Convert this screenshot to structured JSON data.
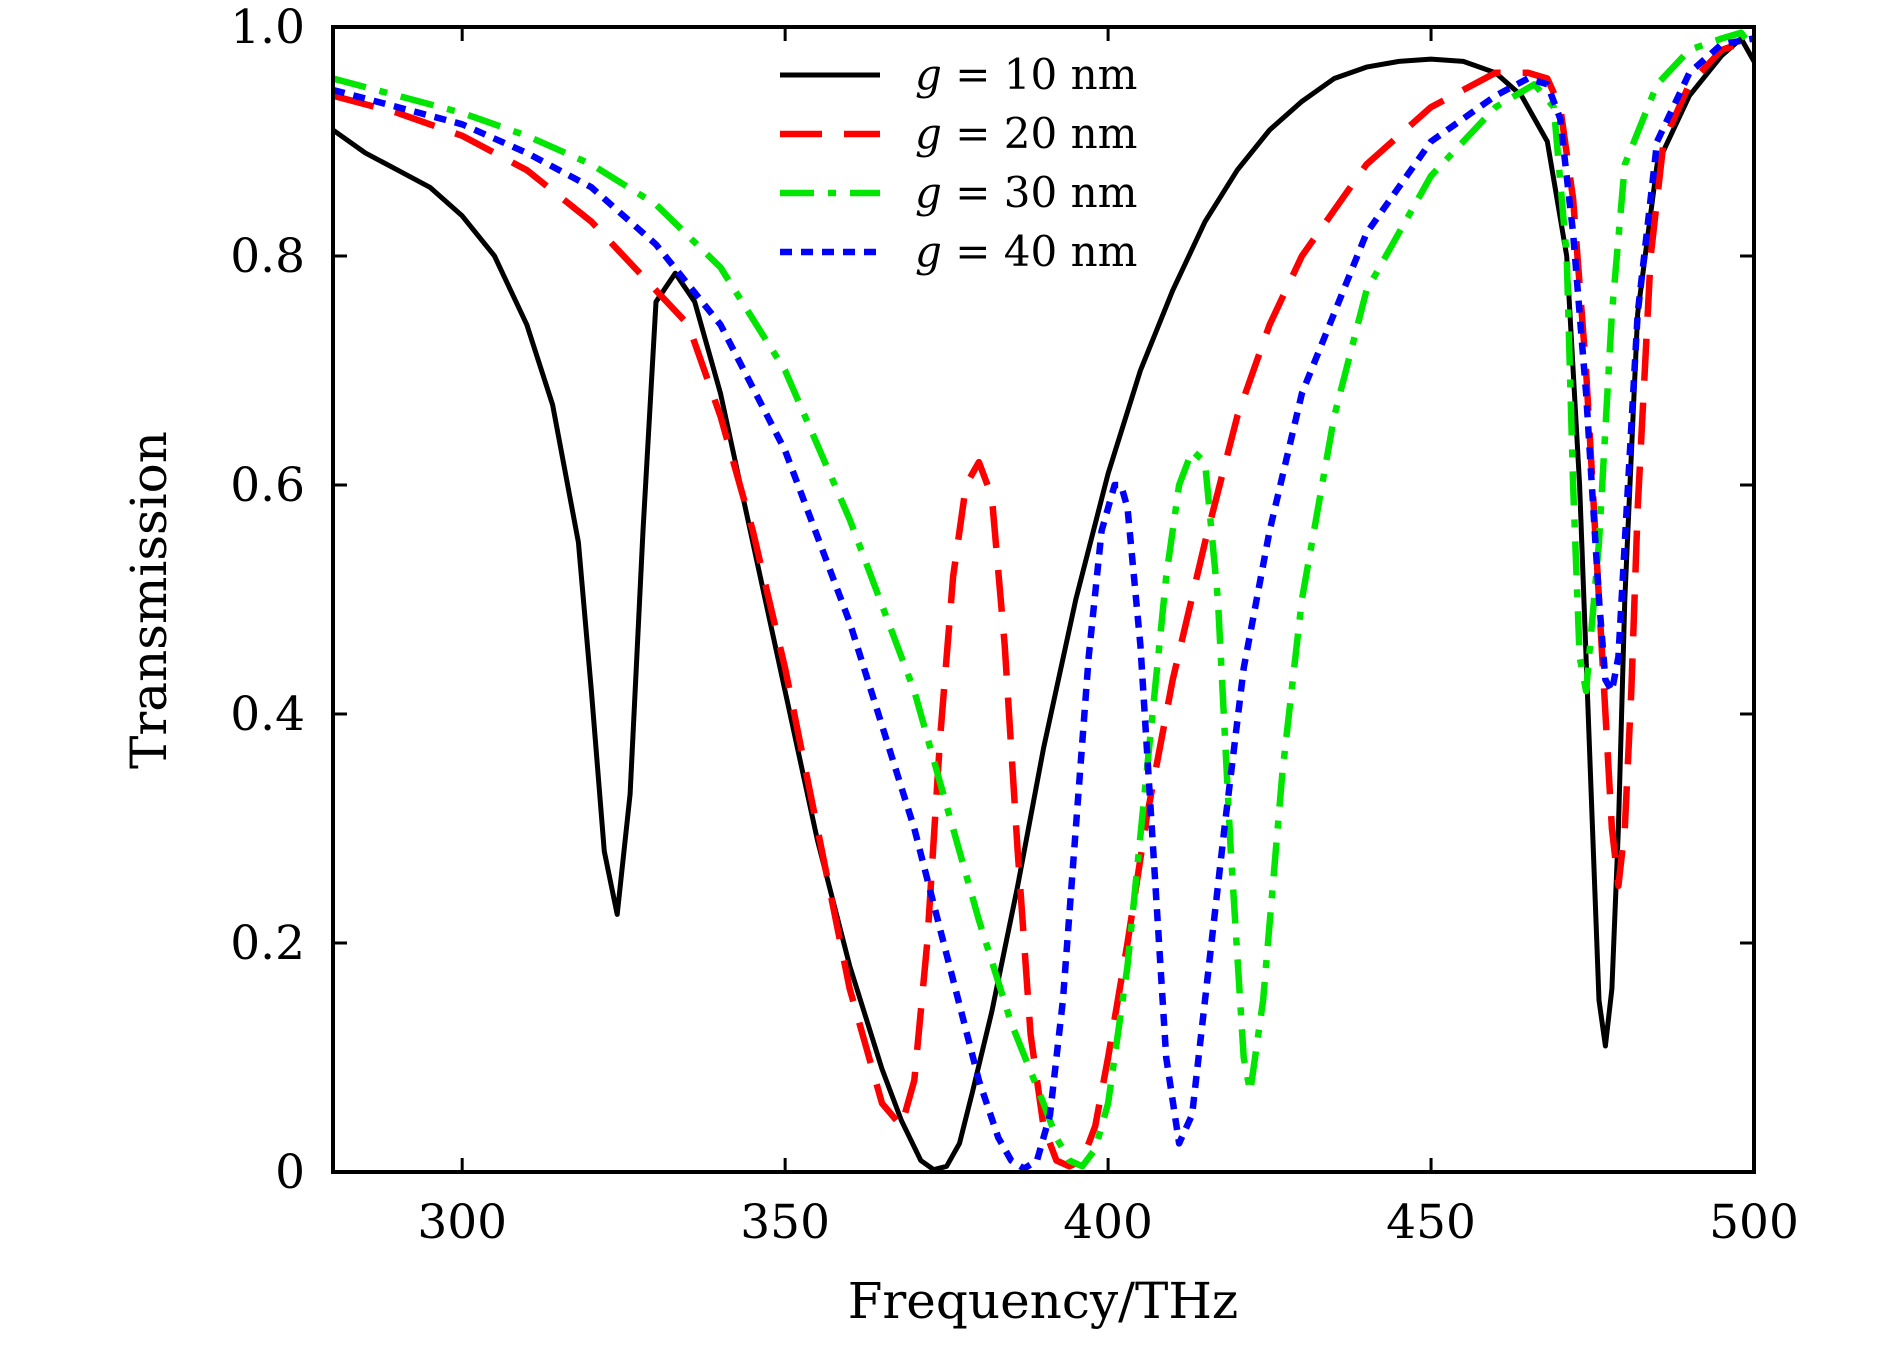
{
  "chart_data": {
    "type": "line",
    "xlabel": "Frequency/THz",
    "ylabel": "Transmission",
    "xlim": [
      280,
      500
    ],
    "ylim": [
      0,
      1.0
    ],
    "xticks": [
      300,
      350,
      400,
      450,
      500
    ],
    "yticks": [
      0,
      0.2,
      0.4,
      0.6,
      0.8,
      1.0
    ],
    "xtick_labels": [
      "300",
      "350",
      "400",
      "450",
      "500"
    ],
    "ytick_labels": [
      "0",
      "0.2",
      "0.4",
      "0.6",
      "0.8",
      "1.0"
    ],
    "grid": false,
    "legend_position": "top-center",
    "series": [
      {
        "name": "g = 10 nm",
        "name_math": "g",
        "name_text": "= 10 nm",
        "color": "#000000",
        "dash": "solid",
        "x": [
          280,
          285,
          290,
          295,
          300,
          305,
          310,
          314,
          318,
          320,
          322,
          324,
          326,
          328,
          330,
          333,
          336,
          340,
          345,
          350,
          355,
          360,
          365,
          368,
          371,
          373,
          375,
          377,
          379,
          382,
          386,
          390,
          395,
          400,
          405,
          410,
          415,
          420,
          425,
          430,
          435,
          440,
          445,
          450,
          455,
          460,
          464,
          468,
          471,
          473,
          475,
          476,
          477,
          478,
          479,
          480,
          482,
          485,
          490,
          495,
          498,
          500
        ],
        "y": [
          0.91,
          0.89,
          0.875,
          0.86,
          0.835,
          0.8,
          0.74,
          0.67,
          0.55,
          0.42,
          0.28,
          0.225,
          0.33,
          0.56,
          0.76,
          0.785,
          0.76,
          0.68,
          0.55,
          0.42,
          0.29,
          0.18,
          0.09,
          0.045,
          0.01,
          0.002,
          0.005,
          0.025,
          0.07,
          0.14,
          0.25,
          0.37,
          0.5,
          0.61,
          0.7,
          0.77,
          0.83,
          0.875,
          0.91,
          0.935,
          0.955,
          0.965,
          0.97,
          0.972,
          0.97,
          0.96,
          0.94,
          0.9,
          0.8,
          0.6,
          0.3,
          0.15,
          0.11,
          0.16,
          0.3,
          0.5,
          0.75,
          0.88,
          0.94,
          0.975,
          0.99,
          0.97
        ]
      },
      {
        "name": "g = 20 nm",
        "name_math": "g",
        "name_text": "= 20 nm",
        "color": "#ff0000",
        "dash": "dashed",
        "x": [
          280,
          290,
          300,
          310,
          320,
          330,
          335,
          340,
          345,
          350,
          355,
          360,
          365,
          368,
          370,
          372,
          374,
          376,
          378,
          380,
          382,
          384,
          386,
          388,
          390,
          392,
          394,
          396,
          398,
          400,
          403,
          406,
          410,
          415,
          420,
          425,
          430,
          440,
          450,
          460,
          465,
          468,
          470,
          472,
          474,
          476,
          478,
          479,
          480,
          481,
          482,
          484,
          486,
          490,
          495,
          500
        ],
        "y": [
          0.94,
          0.925,
          0.905,
          0.875,
          0.83,
          0.77,
          0.74,
          0.66,
          0.56,
          0.44,
          0.3,
          0.16,
          0.06,
          0.04,
          0.08,
          0.2,
          0.38,
          0.52,
          0.6,
          0.62,
          0.59,
          0.46,
          0.28,
          0.12,
          0.04,
          0.01,
          0.005,
          0.01,
          0.04,
          0.1,
          0.2,
          0.31,
          0.43,
          0.55,
          0.66,
          0.74,
          0.8,
          0.88,
          0.93,
          0.96,
          0.96,
          0.955,
          0.93,
          0.85,
          0.7,
          0.5,
          0.3,
          0.25,
          0.3,
          0.42,
          0.58,
          0.8,
          0.9,
          0.95,
          0.98,
          0.99
        ]
      },
      {
        "name": "g = 30 nm",
        "name_math": "g",
        "name_text": "= 30 nm",
        "color": "#00e600",
        "dash": "dashdot",
        "x": [
          280,
          290,
          300,
          310,
          320,
          330,
          340,
          350,
          360,
          370,
          375,
          380,
          385,
          390,
          392,
          394,
          396,
          398,
          400,
          403,
          406,
          409,
          411,
          413,
          415,
          417,
          419,
          421,
          422,
          424,
          427,
          430,
          435,
          440,
          450,
          460,
          466,
          469,
          471,
          472,
          473,
          474,
          476,
          478,
          480,
          485,
          490,
          495,
          498,
          500
        ],
        "y": [
          0.955,
          0.94,
          0.925,
          0.905,
          0.88,
          0.845,
          0.79,
          0.7,
          0.57,
          0.42,
          0.32,
          0.22,
          0.13,
          0.06,
          0.03,
          0.01,
          0.005,
          0.02,
          0.06,
          0.18,
          0.35,
          0.52,
          0.6,
          0.63,
          0.62,
          0.5,
          0.28,
          0.1,
          0.07,
          0.15,
          0.35,
          0.5,
          0.66,
          0.77,
          0.87,
          0.93,
          0.95,
          0.93,
          0.8,
          0.6,
          0.45,
          0.42,
          0.55,
          0.75,
          0.88,
          0.95,
          0.98,
          0.99,
          0.995,
          0.98
        ]
      },
      {
        "name": "g = 40 nm",
        "name_math": "g",
        "name_text": "= 40 nm",
        "color": "#0000ff",
        "dash": "dotted",
        "x": [
          280,
          290,
          300,
          310,
          320,
          330,
          340,
          350,
          360,
          365,
          370,
          375,
          380,
          383,
          385,
          387,
          389,
          391,
          393,
          395,
          397,
          399,
          401,
          402,
          403,
          405,
          407,
          409,
          411,
          413,
          415,
          418,
          421,
          425,
          430,
          440,
          450,
          460,
          465,
          468,
          470,
          472,
          474,
          476,
          477,
          478,
          479,
          480,
          482,
          485,
          490,
          495,
          500
        ],
        "y": [
          0.945,
          0.93,
          0.915,
          0.89,
          0.86,
          0.81,
          0.74,
          0.63,
          0.48,
          0.39,
          0.3,
          0.19,
          0.08,
          0.03,
          0.01,
          0.003,
          0.01,
          0.05,
          0.15,
          0.3,
          0.45,
          0.56,
          0.6,
          0.6,
          0.58,
          0.46,
          0.28,
          0.1,
          0.025,
          0.05,
          0.15,
          0.3,
          0.44,
          0.56,
          0.68,
          0.82,
          0.9,
          0.94,
          0.955,
          0.95,
          0.92,
          0.82,
          0.68,
          0.5,
          0.43,
          0.42,
          0.45,
          0.55,
          0.75,
          0.9,
          0.96,
          0.985,
          0.99
        ]
      }
    ]
  }
}
